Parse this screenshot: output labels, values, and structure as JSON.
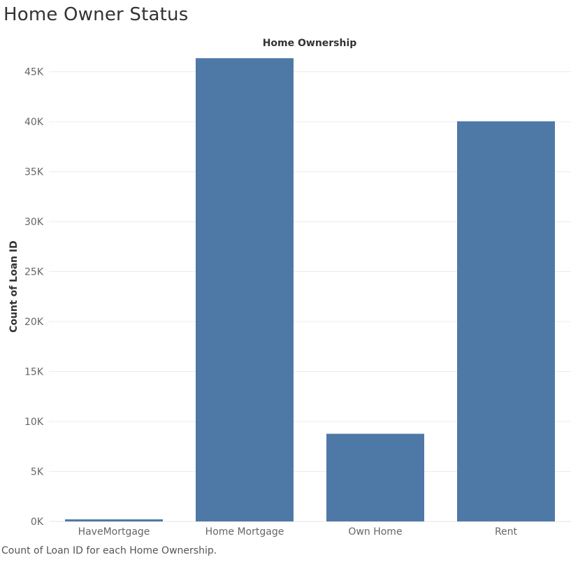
{
  "page": {
    "title": "Home Owner Status",
    "caption": "Count of Loan ID for each Home Ownership."
  },
  "chart_data": {
    "type": "bar",
    "title": "Home Ownership",
    "xlabel": "",
    "ylabel": "Count of Loan ID",
    "categories": [
      "HaveMortgage",
      "Home Mortgage",
      "Own Home",
      "Rent"
    ],
    "values": [
      214,
      46354,
      8773,
      40040
    ],
    "ylim": [
      0,
      47000
    ],
    "yticks": [
      0,
      5000,
      10000,
      15000,
      20000,
      25000,
      30000,
      35000,
      40000,
      45000
    ],
    "ytick_labels": [
      "0K",
      "5K",
      "10K",
      "15K",
      "20K",
      "25K",
      "30K",
      "35K",
      "40K",
      "45K"
    ],
    "bar_color": "#4e79a7",
    "grid": true
  }
}
